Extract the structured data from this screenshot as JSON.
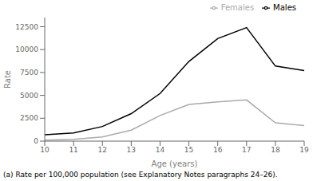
{
  "chart_data": {
    "type": "line",
    "xlabel": "Age (years)",
    "ylabel": "Rate",
    "x": [
      10,
      11,
      12,
      13,
      14,
      15,
      16,
      17,
      18,
      19
    ],
    "series": [
      {
        "name": "Males",
        "color": "#000000",
        "values": [
          700,
          900,
          1600,
          3000,
          5200,
          8700,
          11200,
          12400,
          8200,
          7700
        ]
      },
      {
        "name": "Females",
        "color": "#aaaaaa",
        "values": [
          100,
          200,
          450,
          1200,
          2800,
          4000,
          4300,
          4500,
          2000,
          1700
        ]
      }
    ],
    "xlim": [
      10,
      19
    ],
    "ylim": [
      0,
      13500
    ],
    "xticks": [
      10,
      11,
      12,
      13,
      14,
      15,
      16,
      17,
      18,
      19
    ],
    "yticks": [
      0,
      2500,
      5000,
      7500,
      10000,
      12500
    ],
    "legend": "upper right",
    "grid": false,
    "annotations": [
      "(a) Rate per 100,000 population (see Explanatory Notes paragraphs 24–26)."
    ]
  }
}
